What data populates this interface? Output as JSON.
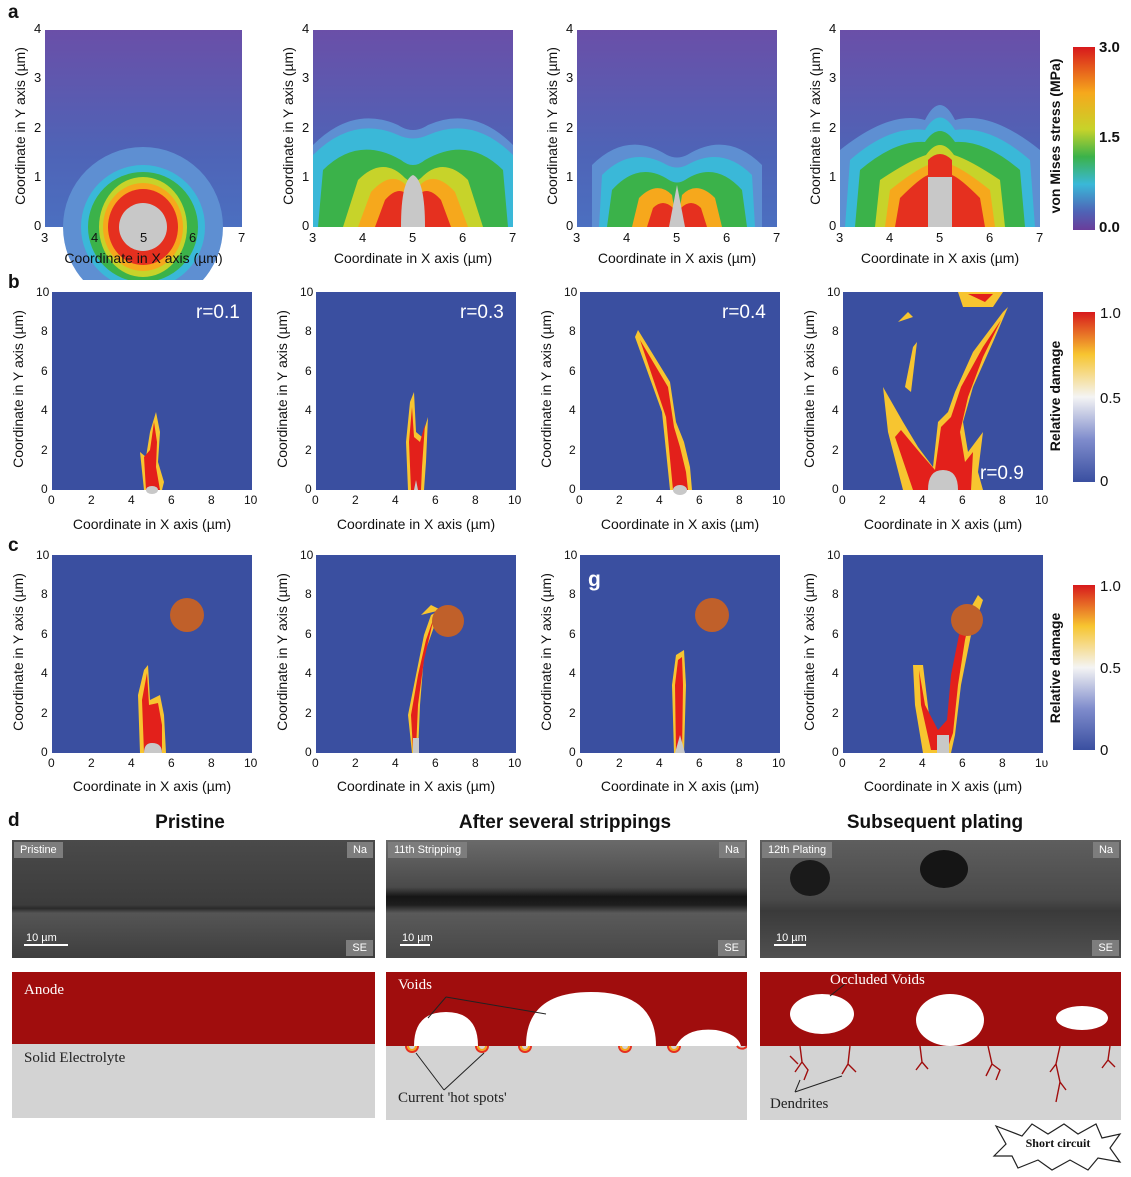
{
  "panels": {
    "a": "a",
    "b": "b",
    "c": "c",
    "d": "d"
  },
  "axes": {
    "xlabel": "Coordinate in X axis (µm)",
    "ylabel": "Coordinate in Y axis (µm)",
    "a_xticks": [
      "3",
      "4",
      "5",
      "6",
      "7"
    ],
    "a_yticks": [
      "0",
      "1",
      "2",
      "3",
      "4"
    ],
    "bc_ticks": [
      "0",
      "2",
      "4",
      "6",
      "8",
      "10"
    ],
    "c4_last_xtick": "1υ"
  },
  "row_b_labels": [
    "r=0.1",
    "r=0.3",
    "r=0.4",
    "r=0.9"
  ],
  "row_c_g": "g",
  "colorbar_a": {
    "title": "von Mises stress (MPa)",
    "ticks": [
      "3.0",
      "1.5",
      "0.0"
    ]
  },
  "colorbar_b": {
    "title": "Relative damage",
    "ticks": [
      "1.0",
      "0.5",
      "0"
    ]
  },
  "colorbar_c": {
    "title": "Relative damage",
    "ticks": [
      "1.0",
      "0.5",
      "0"
    ]
  },
  "sem": [
    {
      "title": "Pristine",
      "tag": "Pristine",
      "na": "Na",
      "se": "SE",
      "scale": "10 µm"
    },
    {
      "title": "After several strippings",
      "tag": "11th Stripping",
      "na": "Na",
      "se": "SE",
      "scale": "10 µm"
    },
    {
      "title": "Subsequent plating",
      "tag": "12th Plating",
      "na": "Na",
      "se": "SE",
      "scale": "10 µm"
    }
  ],
  "schematic": {
    "anode": "Anode",
    "electrolyte": "Solid Electrolyte",
    "voids": "Voids",
    "hotspots": "Current 'hot spots'",
    "occluded": "Occluded Voids",
    "dendrites": "Dendrites",
    "short": "Short circuit"
  },
  "colors": {
    "field_blue": "#3a4fa0",
    "anode_red": "#a00d0d",
    "electrolyte_gray": "#d3d3d3",
    "particle": "#c0602a"
  }
}
